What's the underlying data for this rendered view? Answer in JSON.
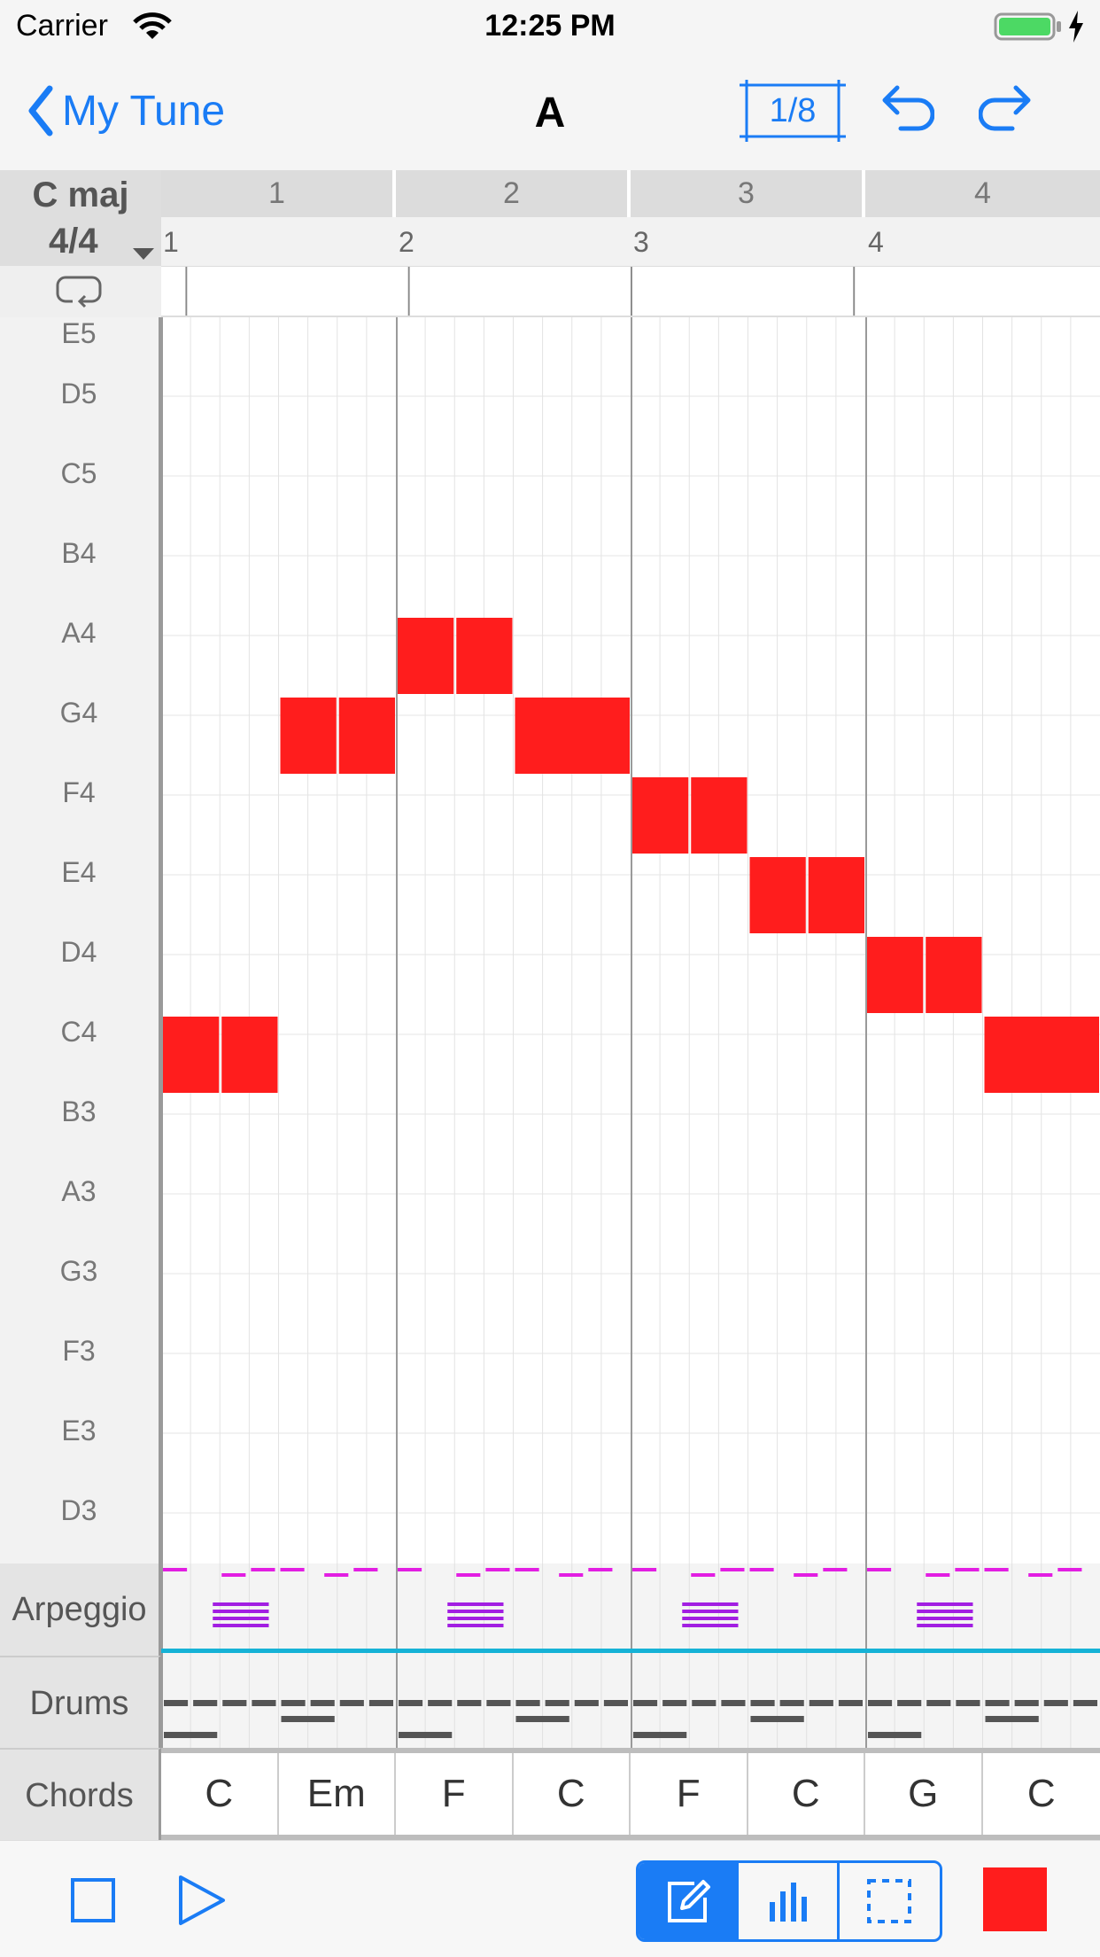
{
  "status_bar": {
    "carrier": "Carrier",
    "time": "12:25 PM"
  },
  "nav": {
    "back_label": "My Tune",
    "title": "A",
    "quantize": "1/8"
  },
  "header": {
    "key": "C maj",
    "time_signature": "4/4",
    "bars": [
      "1",
      "2",
      "3",
      "4"
    ],
    "beats": [
      "1",
      "2",
      "3",
      "4"
    ]
  },
  "pitches": [
    "E5",
    "D5",
    "C5",
    "B4",
    "A4",
    "G4",
    "F4",
    "E4",
    "D4",
    "C4",
    "B3",
    "A3",
    "G3",
    "F3",
    "E3",
    "D3"
  ],
  "notes": [
    {
      "pitch": "C4",
      "start": 0,
      "length": 1
    },
    {
      "pitch": "C4",
      "start": 1,
      "length": 1
    },
    {
      "pitch": "G4",
      "start": 2,
      "length": 1
    },
    {
      "pitch": "G4",
      "start": 3,
      "length": 1
    },
    {
      "pitch": "A4",
      "start": 4,
      "length": 1
    },
    {
      "pitch": "A4",
      "start": 5,
      "length": 1
    },
    {
      "pitch": "G4",
      "start": 6,
      "length": 2
    },
    {
      "pitch": "F4",
      "start": 8,
      "length": 1
    },
    {
      "pitch": "F4",
      "start": 9,
      "length": 1
    },
    {
      "pitch": "E4",
      "start": 10,
      "length": 1
    },
    {
      "pitch": "E4",
      "start": 11,
      "length": 1
    },
    {
      "pitch": "D4",
      "start": 12,
      "length": 1
    },
    {
      "pitch": "D4",
      "start": 13,
      "length": 1
    },
    {
      "pitch": "C4",
      "start": 14,
      "length": 2
    }
  ],
  "tracks": {
    "arpeggio": "Arpeggio",
    "drums": "Drums",
    "chords": "Chords"
  },
  "chords": [
    "C",
    "Em",
    "F",
    "C",
    "F",
    "C",
    "G",
    "C"
  ],
  "colors": {
    "accent": "#1a7cf5",
    "note": "#ff1d1d",
    "arp_high": "#e21ee2",
    "arp_chord": "#a21ee2",
    "arp_bass": "#16b2d6",
    "drums": "#555555"
  },
  "icons": {
    "wifi": "wifi-icon",
    "battery": "battery-icon",
    "back": "chevron-left-icon",
    "undo": "undo-icon",
    "redo": "redo-icon",
    "loop": "loop-icon",
    "stop": "stop-icon",
    "play": "play-icon",
    "pencil": "pencil-icon",
    "velocity": "velocity-bars-icon",
    "select": "selection-icon"
  }
}
